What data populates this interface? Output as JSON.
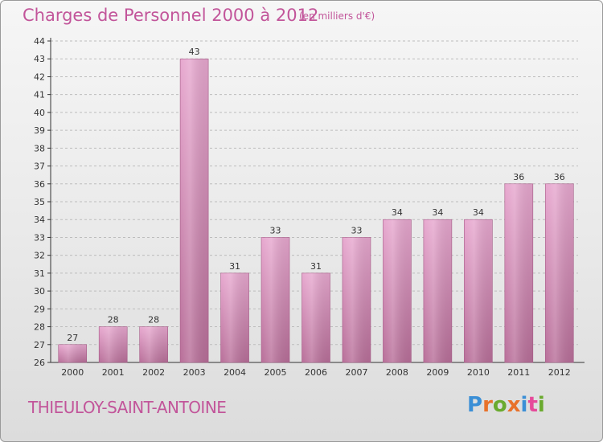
{
  "header": {
    "title": "Charges de Personnel 2000 à 2012",
    "subtitle": "(en milliers d'€)"
  },
  "footer": {
    "commune": "THIEULOY-SAINT-ANTOINE",
    "logo_text": "Proxiti"
  },
  "colors": {
    "title": "#c2559a",
    "bar_light": "#e7a8cf",
    "bar_dark": "#b86f99",
    "axis": "#333333",
    "grid": "#bdbdbd"
  },
  "chart_data": {
    "type": "bar",
    "title": "Charges de Personnel 2000 à 2012",
    "subtitle": "(en milliers d'€)",
    "categories": [
      "2000",
      "2001",
      "2002",
      "2003",
      "2004",
      "2005",
      "2006",
      "2007",
      "2008",
      "2009",
      "2010",
      "2011",
      "2012"
    ],
    "values": [
      27,
      28,
      28,
      43,
      31,
      33,
      31,
      33,
      34,
      34,
      34,
      36,
      36
    ],
    "data_labels": [
      "27",
      "28",
      "28",
      "43",
      "31",
      "33",
      "31",
      "33",
      "34",
      "34",
      "34",
      "36",
      "36"
    ],
    "yticks": [
      "26",
      "27",
      "28",
      "29",
      "30",
      "31",
      "32",
      "33",
      "34",
      "35",
      "36",
      "37",
      "38",
      "39",
      "40",
      "41",
      "42",
      "43",
      "44"
    ],
    "ylim": [
      26,
      44
    ],
    "grid": true,
    "xlabel": "",
    "ylabel": ""
  }
}
